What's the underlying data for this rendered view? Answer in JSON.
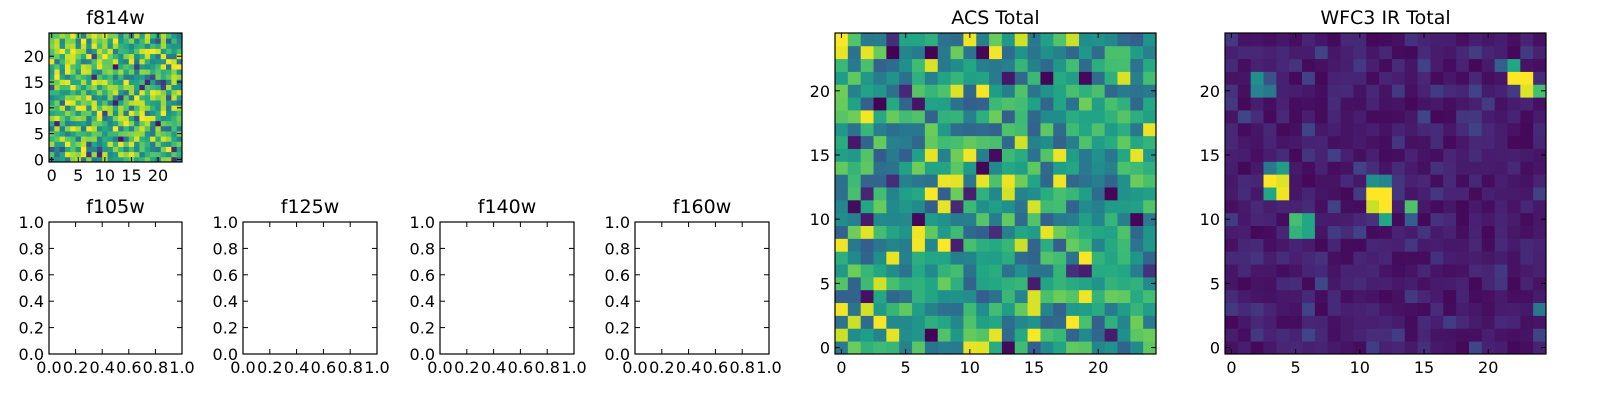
{
  "colormap": "viridis",
  "chart_data": [
    {
      "id": "f814w",
      "type": "heatmap",
      "title": "f814w",
      "size": 25,
      "xlim": [
        -0.5,
        24.5
      ],
      "ylim": [
        -0.5,
        24.5
      ],
      "xticks": [
        0,
        5,
        10,
        15,
        20
      ],
      "yticks": [
        0,
        5,
        10,
        15,
        20
      ],
      "texture": {
        "seed": 11,
        "kind": "uniform",
        "vmin": 0,
        "vmax": 1
      }
    },
    {
      "id": "f105w",
      "type": "empty",
      "title": "f105w",
      "xlim": [
        0.0,
        1.0
      ],
      "ylim": [
        0.0,
        1.0
      ],
      "xticks": [
        "0.0",
        "0.2",
        "0.4",
        "0.6",
        "0.8",
        "1.0"
      ],
      "yticks": [
        "0.0",
        "0.2",
        "0.4",
        "0.6",
        "0.8",
        "1.0"
      ]
    },
    {
      "id": "f125w",
      "type": "empty",
      "title": "f125w",
      "xlim": [
        0.0,
        1.0
      ],
      "ylim": [
        0.0,
        1.0
      ],
      "xticks": [
        "0.0",
        "0.2",
        "0.4",
        "0.6",
        "0.8",
        "1.0"
      ],
      "yticks": [
        "0.0",
        "0.2",
        "0.4",
        "0.6",
        "0.8",
        "1.0"
      ]
    },
    {
      "id": "f140w",
      "type": "empty",
      "title": "f140w",
      "xlim": [
        0.0,
        1.0
      ],
      "ylim": [
        0.0,
        1.0
      ],
      "xticks": [
        "0.0",
        "0.2",
        "0.4",
        "0.6",
        "0.8",
        "1.0"
      ],
      "yticks": [
        "0.0",
        "0.2",
        "0.4",
        "0.6",
        "0.8",
        "1.0"
      ]
    },
    {
      "id": "f160w",
      "type": "empty",
      "title": "f160w",
      "xlim": [
        0.0,
        1.0
      ],
      "ylim": [
        0.0,
        1.0
      ],
      "xticks": [
        "0.0",
        "0.2",
        "0.4",
        "0.6",
        "0.8",
        "1.0"
      ],
      "yticks": [
        "0.0",
        "0.2",
        "0.4",
        "0.6",
        "0.8",
        "1.0"
      ]
    },
    {
      "id": "acs-total",
      "type": "heatmap",
      "title": "ACS Total",
      "size": 25,
      "xlim": [
        -0.5,
        24.5
      ],
      "ylim": [
        -0.5,
        24.5
      ],
      "xticks": [
        0,
        5,
        10,
        15,
        20
      ],
      "yticks": [
        0,
        5,
        10,
        15,
        20
      ],
      "texture": {
        "seed": 29,
        "kind": "mid",
        "vmin": 0,
        "vmax": 1
      }
    },
    {
      "id": "wfc3-ir-total",
      "type": "heatmap",
      "title": "WFC3 IR Total",
      "size": 25,
      "xlim": [
        -0.5,
        24.5
      ],
      "ylim": [
        -0.5,
        24.5
      ],
      "xticks": [
        0,
        5,
        10,
        15,
        20
      ],
      "yticks": [
        0,
        5,
        10,
        15,
        20
      ],
      "texture": {
        "seed": 47,
        "kind": "dark",
        "vmin": 0,
        "vmax": 1
      },
      "bright_pixels": [
        {
          "x": 3,
          "y": 13,
          "v": 1.0
        },
        {
          "x": 4,
          "y": 13,
          "v": 0.95
        },
        {
          "x": 4,
          "y": 12,
          "v": 0.98
        },
        {
          "x": 3,
          "y": 12,
          "v": 0.6
        },
        {
          "x": 4,
          "y": 14,
          "v": 0.55
        },
        {
          "x": 3,
          "y": 14,
          "v": 0.4
        },
        {
          "x": 2,
          "y": 21,
          "v": 0.5
        },
        {
          "x": 2,
          "y": 20,
          "v": 0.45
        },
        {
          "x": 3,
          "y": 20,
          "v": 0.4
        },
        {
          "x": 3,
          "y": 21,
          "v": 0.25
        },
        {
          "x": 5,
          "y": 10,
          "v": 0.7
        },
        {
          "x": 6,
          "y": 10,
          "v": 0.6
        },
        {
          "x": 5,
          "y": 9,
          "v": 0.65
        },
        {
          "x": 6,
          "y": 9,
          "v": 0.6
        },
        {
          "x": 11,
          "y": 12,
          "v": 1.0
        },
        {
          "x": 12,
          "y": 12,
          "v": 1.0
        },
        {
          "x": 11,
          "y": 11,
          "v": 0.92
        },
        {
          "x": 12,
          "y": 11,
          "v": 1.0
        },
        {
          "x": 11,
          "y": 13,
          "v": 0.5
        },
        {
          "x": 12,
          "y": 13,
          "v": 0.45
        },
        {
          "x": 12,
          "y": 10,
          "v": 0.6
        },
        {
          "x": 14,
          "y": 11,
          "v": 0.72
        },
        {
          "x": 14,
          "y": 10,
          "v": 0.3
        },
        {
          "x": 22,
          "y": 22,
          "v": 0.6
        },
        {
          "x": 22,
          "y": 21,
          "v": 1.0
        },
        {
          "x": 23,
          "y": 21,
          "v": 1.0
        },
        {
          "x": 23,
          "y": 20,
          "v": 0.95
        },
        {
          "x": 24,
          "y": 20,
          "v": 0.7
        },
        {
          "x": 21,
          "y": 22,
          "v": 0.3
        },
        {
          "x": 24,
          "y": 3,
          "v": 0.4
        }
      ]
    }
  ]
}
